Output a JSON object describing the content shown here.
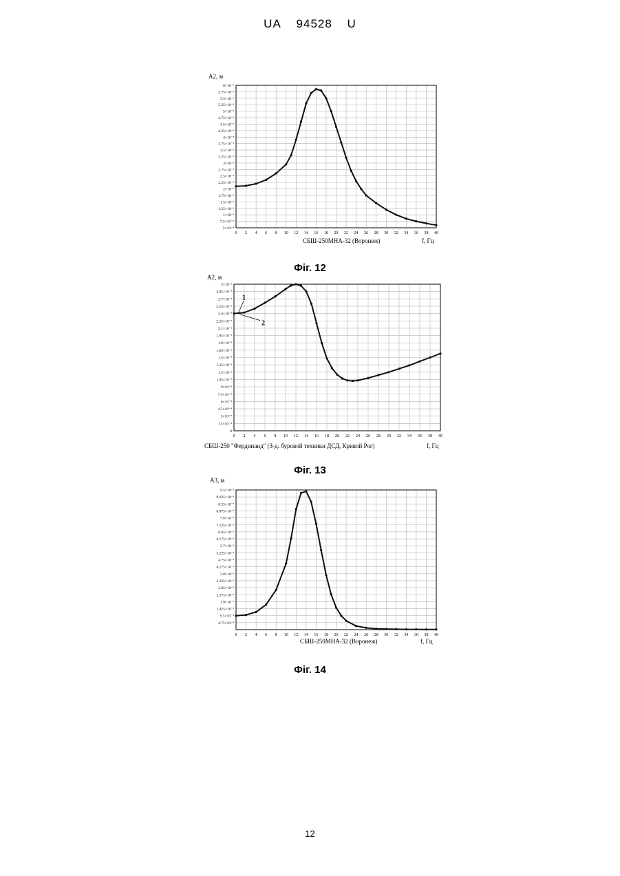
{
  "header": {
    "country": "UA",
    "number": "94528",
    "kind": "U"
  },
  "page_number": "12",
  "chart_data": [
    {
      "type": "line",
      "caption": "Фіг. 12",
      "ylabel": "A2, м",
      "xlabel": "СБШ-250МНА-32 (Воронеж)",
      "xunit": "f, Гц",
      "xlim": [
        0,
        40
      ],
      "ylim": [
        0.0005,
        0.006
      ],
      "x_ticks": [
        "0",
        "2",
        "4",
        "6",
        "8",
        "10",
        "12",
        "14",
        "16",
        "18",
        "20",
        "22",
        "24",
        "26",
        "28",
        "30",
        "32",
        "34",
        "36",
        "38",
        "40"
      ],
      "y_ticks": [
        {
          "value": 0.006,
          "label": "6×10⁻³"
        },
        {
          "value": 0.00575,
          "label": "5.75×10⁻³"
        },
        {
          "value": 0.0055,
          "label": "5.5×10⁻³"
        },
        {
          "value": 0.00525,
          "label": "5.25×10⁻³"
        },
        {
          "value": 0.005,
          "label": "5×10⁻³"
        },
        {
          "value": 0.00475,
          "label": "4.75×10⁻³"
        },
        {
          "value": 0.0045,
          "label": "4.5×10⁻³"
        },
        {
          "value": 0.00425,
          "label": "4.25×10⁻³"
        },
        {
          "value": 0.004,
          "label": "4×10⁻³"
        },
        {
          "value": 0.00375,
          "label": "3.75×10⁻³"
        },
        {
          "value": 0.0035,
          "label": "3.5×10⁻³"
        },
        {
          "value": 0.00325,
          "label": "3.25×10⁻³"
        },
        {
          "value": 0.003,
          "label": "3×10⁻³"
        },
        {
          "value": 0.00275,
          "label": "2.75×10⁻³"
        },
        {
          "value": 0.0025,
          "label": "2.5×10⁻³"
        },
        {
          "value": 0.00225,
          "label": "2.25×10⁻³"
        },
        {
          "value": 0.002,
          "label": "2×10⁻³"
        },
        {
          "value": 0.00175,
          "label": "1.75×10⁻³"
        },
        {
          "value": 0.0015,
          "label": "1.5×10⁻³"
        },
        {
          "value": 0.00125,
          "label": "1.25×10⁻³"
        },
        {
          "value": 0.001,
          "label": "1×10⁻³"
        },
        {
          "value": 0.00075,
          "label": "7.5×10⁻⁴"
        },
        {
          "value": 0.0005,
          "label": "5×10⁻⁴"
        }
      ],
      "grid": true,
      "series": [
        {
          "x": [
            0,
            2,
            4,
            6,
            8,
            10,
            11,
            12,
            13,
            14,
            15,
            16,
            17,
            18,
            19,
            20,
            21,
            22,
            23,
            24,
            25,
            26,
            28,
            30,
            32,
            34,
            36,
            38,
            40
          ],
          "y": [
            0.0021,
            0.00212,
            0.0022,
            0.00235,
            0.0026,
            0.00295,
            0.0033,
            0.0039,
            0.0046,
            0.0053,
            0.0057,
            0.00585,
            0.0058,
            0.0055,
            0.005,
            0.0044,
            0.0038,
            0.0032,
            0.0027,
            0.0023,
            0.002,
            0.00175,
            0.00145,
            0.0012,
            0.001,
            0.00085,
            0.00075,
            0.00067,
            0.0006
          ]
        }
      ],
      "annotations": []
    },
    {
      "type": "line",
      "caption": "Фіг. 13",
      "ylabel": "A2, м",
      "xlabel": "СБШ-250 \"Фердинанд\" (З-д. буровой техники ДСД, Кривой Рог)",
      "xunit": "f, Гц",
      "xlim": [
        0,
        40
      ],
      "ylim": [
        0.0,
        0.003
      ],
      "x_ticks": [
        "0",
        "2",
        "4",
        "6",
        "8",
        "10",
        "12",
        "14",
        "16",
        "18",
        "20",
        "22",
        "24",
        "26",
        "28",
        "30",
        "32",
        "34",
        "36",
        "38",
        "40"
      ],
      "y_ticks": [
        {
          "value": 0.003,
          "label": "3×10⁻³"
        },
        {
          "value": 0.00285,
          "label": "2.85×10⁻³"
        },
        {
          "value": 0.0027,
          "label": "2.7×10⁻³"
        },
        {
          "value": 0.00255,
          "label": "2.55×10⁻³"
        },
        {
          "value": 0.0024,
          "label": "2.4×10⁻³"
        },
        {
          "value": 0.00225,
          "label": "2.25×10⁻³"
        },
        {
          "value": 0.0021,
          "label": "2.1×10⁻³"
        },
        {
          "value": 0.00195,
          "label": "1.95×10⁻³"
        },
        {
          "value": 0.0018,
          "label": "1.8×10⁻³"
        },
        {
          "value": 0.00165,
          "label": "1.65×10⁻³"
        },
        {
          "value": 0.0015,
          "label": "1.5×10⁻³"
        },
        {
          "value": 0.00135,
          "label": "1.35×10⁻³"
        },
        {
          "value": 0.0012,
          "label": "1.2×10⁻³"
        },
        {
          "value": 0.00105,
          "label": "1.05×10⁻³"
        },
        {
          "value": 0.0009,
          "label": "9×10⁻⁴"
        },
        {
          "value": 0.00075,
          "label": "7.5×10⁻⁴"
        },
        {
          "value": 0.0006,
          "label": "6×10⁻⁴"
        },
        {
          "value": 0.00045,
          "label": "4.5×10⁻⁴"
        },
        {
          "value": 0.0003,
          "label": "3×10⁻⁴"
        },
        {
          "value": 0.00015,
          "label": "1.5×10⁻⁴"
        },
        {
          "value": 0.0,
          "label": "0"
        }
      ],
      "grid": true,
      "series": [
        {
          "x": [
            0,
            2,
            4,
            6,
            8,
            10,
            11,
            12,
            13,
            14,
            15,
            16,
            17,
            18,
            19,
            20,
            21,
            22,
            23,
            24,
            26,
            28,
            30,
            32,
            34,
            36,
            38,
            40
          ],
          "y": [
            0.0024,
            0.00242,
            0.0025,
            0.00262,
            0.00275,
            0.0029,
            0.00297,
            0.003,
            0.00297,
            0.00285,
            0.0026,
            0.0022,
            0.0018,
            0.00148,
            0.00128,
            0.00115,
            0.00107,
            0.00103,
            0.00102,
            0.00103,
            0.00108,
            0.00114,
            0.0012,
            0.00127,
            0.00134,
            0.00142,
            0.0015,
            0.00158
          ]
        }
      ],
      "annotations": [
        "1",
        "2"
      ]
    },
    {
      "type": "line",
      "caption": "Фіг. 14",
      "ylabel": "A3, м",
      "xlabel": "СБШ-250МНА-32 (Воронеж)",
      "xunit": "f, Гц",
      "xlim": [
        0,
        40
      ],
      "ylim": [
        0.0,
        0.0095
      ],
      "x_ticks": [
        "0",
        "2",
        "4",
        "6",
        "8",
        "10",
        "12",
        "14",
        "16",
        "18",
        "20",
        "22",
        "24",
        "26",
        "28",
        "30",
        "32",
        "34",
        "36",
        "38",
        "40"
      ],
      "y_ticks": [
        {
          "value": 0.0095,
          "label": "9.5×10⁻³"
        },
        {
          "value": 0.009025,
          "label": "9.025×10⁻³"
        },
        {
          "value": 0.00855,
          "label": "8.55×10⁻³"
        },
        {
          "value": 0.008075,
          "label": "8.075×10⁻³"
        },
        {
          "value": 0.0076,
          "label": "7.6×10⁻³"
        },
        {
          "value": 0.007125,
          "label": "7.125×10⁻³"
        },
        {
          "value": 0.00665,
          "label": "6.65×10⁻³"
        },
        {
          "value": 0.006175,
          "label": "6.175×10⁻³"
        },
        {
          "value": 0.0057,
          "label": "5.7×10⁻³"
        },
        {
          "value": 0.005225,
          "label": "5.225×10⁻³"
        },
        {
          "value": 0.00475,
          "label": "4.75×10⁻³"
        },
        {
          "value": 0.004275,
          "label": "4.275×10⁻³"
        },
        {
          "value": 0.0038,
          "label": "3.8×10⁻³"
        },
        {
          "value": 0.003325,
          "label": "3.325×10⁻³"
        },
        {
          "value": 0.00285,
          "label": "2.85×10⁻³"
        },
        {
          "value": 0.002375,
          "label": "2.375×10⁻³"
        },
        {
          "value": 0.0019,
          "label": "1.9×10⁻³"
        },
        {
          "value": 0.001425,
          "label": "1.425×10⁻³"
        },
        {
          "value": 0.00095,
          "label": "9.5×10⁻⁴"
        },
        {
          "value": 0.000475,
          "label": "4.75×10⁻⁴"
        }
      ],
      "grid": true,
      "series": [
        {
          "x": [
            0,
            2,
            4,
            6,
            8,
            10,
            11,
            12,
            13,
            14,
            15,
            16,
            17,
            18,
            19,
            20,
            21,
            22,
            24,
            26,
            28,
            30,
            32,
            34,
            36,
            38,
            40
          ],
          "y": [
            0.00095,
            0.001,
            0.0012,
            0.0017,
            0.0027,
            0.0045,
            0.0062,
            0.0082,
            0.0093,
            0.0094,
            0.0087,
            0.0072,
            0.0054,
            0.0037,
            0.0024,
            0.0015,
            0.00095,
            0.0006,
            0.00025,
            0.00012,
            6e-05,
            4e-05,
            3e-05,
            2e-05,
            2e-05,
            1e-05,
            1e-05
          ]
        }
      ],
      "annotations": []
    }
  ]
}
